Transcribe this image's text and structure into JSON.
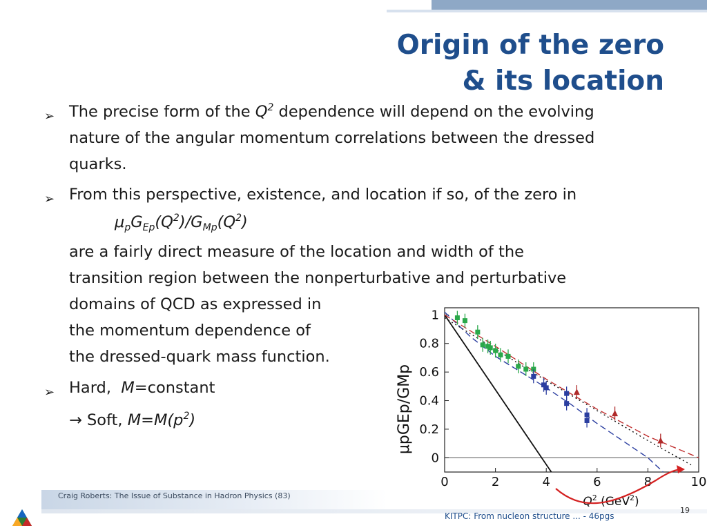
{
  "slide": {
    "title_line1": "Origin of the zero",
    "title_line2": "& its location",
    "bullets": {
      "b1_line1_a": "The precise form of the ",
      "b1_line1_q": "Q",
      "b1_line1_sup": "2",
      "b1_line1_b": " dependence will depend on the evolving",
      "b1_line2": "nature of the angular momentum correlations between the dressed",
      "b1_line3": "quarks.",
      "b2_line1": "From this perspective, existence, and location if so, of the zero in",
      "b2_formula": {
        "mu": "μ",
        "p": "p",
        "G": "G",
        "Ep": "Ep",
        "q1": "(Q",
        "two": "2",
        "mid": ")/G",
        "Mp": "Mp",
        "q2": "(Q",
        "close": ")"
      },
      "b2_line3": "are a fairly direct measure of the location and width of the",
      "b2_line4": "transition region between the nonperturbative and perturbative",
      "b2_line5": "domains of QCD as expressed in",
      "b2_line6": "the momentum dependence of",
      "b2_line7": "the dressed-quark mass function.",
      "b3_hard": "Hard,  ",
      "b3_M": "M",
      "b3_const": "=constant",
      "b3_soft_pre": "→ Soft, ",
      "b3_soft_M": "M=M(p",
      "b3_soft_sup": "2",
      "b3_soft_close": ")"
    },
    "bullet_glyph": "➢",
    "footer_text": "Craig Roberts: The Issue of Substance in Hadron Physics (83)",
    "footer_right": "KITPC: From nucleon structure ... - 46pgs",
    "page_number": "19",
    "colors": {
      "title": "#1f4e8c",
      "band": "#8ea8c6",
      "arrow": "#d42020"
    }
  },
  "chart_data": {
    "type": "scatter",
    "xlabel_q": "Q",
    "xlabel_sup": "2",
    "xlabel_unit": " (GeV",
    "xlabel_unit_sup": "2",
    "xlabel_close": ")",
    "ylabel": "μpGEp/GMp",
    "xlim": [
      0,
      10
    ],
    "ylim": [
      -0.1,
      1.05
    ],
    "x_ticks": [
      "0",
      "2",
      "4",
      "6",
      "8",
      "10"
    ],
    "y_ticks": [
      "1",
      "0.8",
      "0.6",
      "0.4",
      "0.2",
      "0"
    ],
    "series": [
      {
        "color": "#2aa84a",
        "marker": "square",
        "points": [
          [
            0.5,
            0.98
          ],
          [
            0.8,
            0.96
          ],
          [
            1.3,
            0.88
          ],
          [
            1.5,
            0.79
          ],
          [
            1.7,
            0.78
          ],
          [
            1.8,
            0.77
          ],
          [
            2.0,
            0.75
          ],
          [
            2.2,
            0.72
          ],
          [
            2.5,
            0.71
          ],
          [
            2.9,
            0.64
          ],
          [
            3.2,
            0.62
          ],
          [
            3.5,
            0.62
          ]
        ]
      },
      {
        "color": "#2b3ea0",
        "marker": "square",
        "points": [
          [
            3.5,
            0.57
          ],
          [
            3.9,
            0.51
          ],
          [
            4.0,
            0.49
          ],
          [
            4.8,
            0.38
          ],
          [
            4.8,
            0.45
          ],
          [
            5.6,
            0.3
          ],
          [
            5.6,
            0.26
          ]
        ]
      },
      {
        "color": "#b02a2a",
        "marker": "triangle",
        "points": [
          [
            5.2,
            0.46
          ],
          [
            6.7,
            0.31
          ],
          [
            8.5,
            0.12
          ]
        ]
      }
    ],
    "curves": [
      {
        "style": "solid",
        "color": "#111111",
        "points": [
          [
            0,
            1.0
          ],
          [
            4.2,
            -0.1
          ]
        ]
      },
      {
        "style": "dashed",
        "color": "#2b3ea0",
        "points": [
          [
            0,
            1.02
          ],
          [
            1,
            0.85
          ],
          [
            2,
            0.71
          ],
          [
            3,
            0.6
          ],
          [
            4,
            0.49
          ],
          [
            5,
            0.37
          ],
          [
            6,
            0.24
          ],
          [
            7,
            0.12
          ],
          [
            8,
            0.0
          ],
          [
            8.6,
            -0.1
          ]
        ]
      },
      {
        "style": "dashed",
        "color": "#c03030",
        "points": [
          [
            0,
            1.0
          ],
          [
            2,
            0.78
          ],
          [
            4,
            0.55
          ],
          [
            6,
            0.34
          ],
          [
            8,
            0.15
          ],
          [
            10,
            0.0
          ]
        ]
      },
      {
        "style": "dotted",
        "color": "#111111",
        "points": [
          [
            0,
            0.98
          ],
          [
            2,
            0.76
          ],
          [
            4,
            0.54
          ],
          [
            6,
            0.33
          ],
          [
            8,
            0.12
          ],
          [
            9.7,
            -0.05
          ]
        ]
      }
    ]
  }
}
